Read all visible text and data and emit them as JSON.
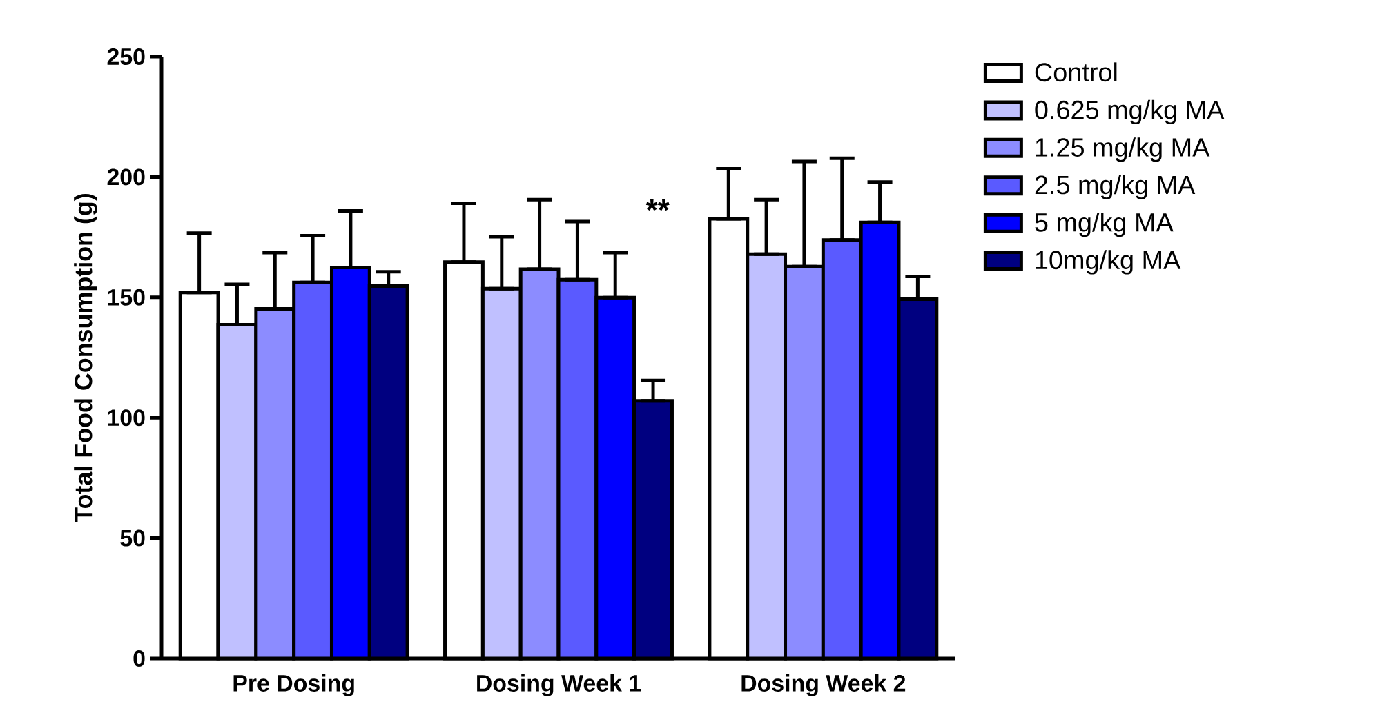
{
  "chart_data": {
    "type": "bar",
    "ylabel": "Total Food Consumption (g)",
    "categories": [
      "Pre Dosing",
      "Dosing Week 1",
      "Dosing Week 2"
    ],
    "ylim": [
      0,
      250
    ],
    "yticks": [
      0,
      50,
      100,
      150,
      200,
      250
    ],
    "legend": "top right",
    "grid": false,
    "series": [
      {
        "name": "Control",
        "color": "#ffffff",
        "values": [
          152,
          164.6,
          182.6
        ],
        "errors": [
          [
            152,
            176.7
          ],
          [
            164.6,
            189.1
          ],
          [
            182.6,
            203.4
          ]
        ]
      },
      {
        "name": "0.625 mg/kg MA",
        "color": "#c0c0ff",
        "values": [
          138.6,
          153.6,
          167.9
        ],
        "errors": [
          [
            138.6,
            155.4
          ],
          [
            153.6,
            175.2
          ],
          [
            167.9,
            190.6
          ]
        ]
      },
      {
        "name": "1.25 mg/kg MA",
        "color": "#8c8cff",
        "values": [
          145.2,
          161.7,
          162.8
        ],
        "errors": [
          [
            145.2,
            168.6
          ],
          [
            161.7,
            190.6
          ],
          [
            162.8,
            206.4
          ]
        ]
      },
      {
        "name": "2.5 mg/kg MA",
        "color": "#5a5aff",
        "values": [
          156.2,
          157.3,
          173.8
        ],
        "errors": [
          [
            156.2,
            175.6
          ],
          [
            157.3,
            181.5
          ],
          [
            173.8,
            207.8
          ]
        ]
      },
      {
        "name": "5 mg/kg MA",
        "color": "#0000ff",
        "values": [
          162.4,
          149.9,
          181.1
        ],
        "errors": [
          [
            162.4,
            185.9
          ],
          [
            149.9,
            168.6
          ],
          [
            181.1,
            197.9
          ]
        ]
      },
      {
        "name": "10mg/kg MA",
        "color": "#000080",
        "values": [
          154.7,
          107.0,
          149.2
        ],
        "errors": [
          [
            154.7,
            160.6
          ],
          [
            107.0,
            115.5
          ],
          [
            149.2,
            158.7
          ]
        ]
      }
    ],
    "annotations": [
      "**"
    ]
  }
}
